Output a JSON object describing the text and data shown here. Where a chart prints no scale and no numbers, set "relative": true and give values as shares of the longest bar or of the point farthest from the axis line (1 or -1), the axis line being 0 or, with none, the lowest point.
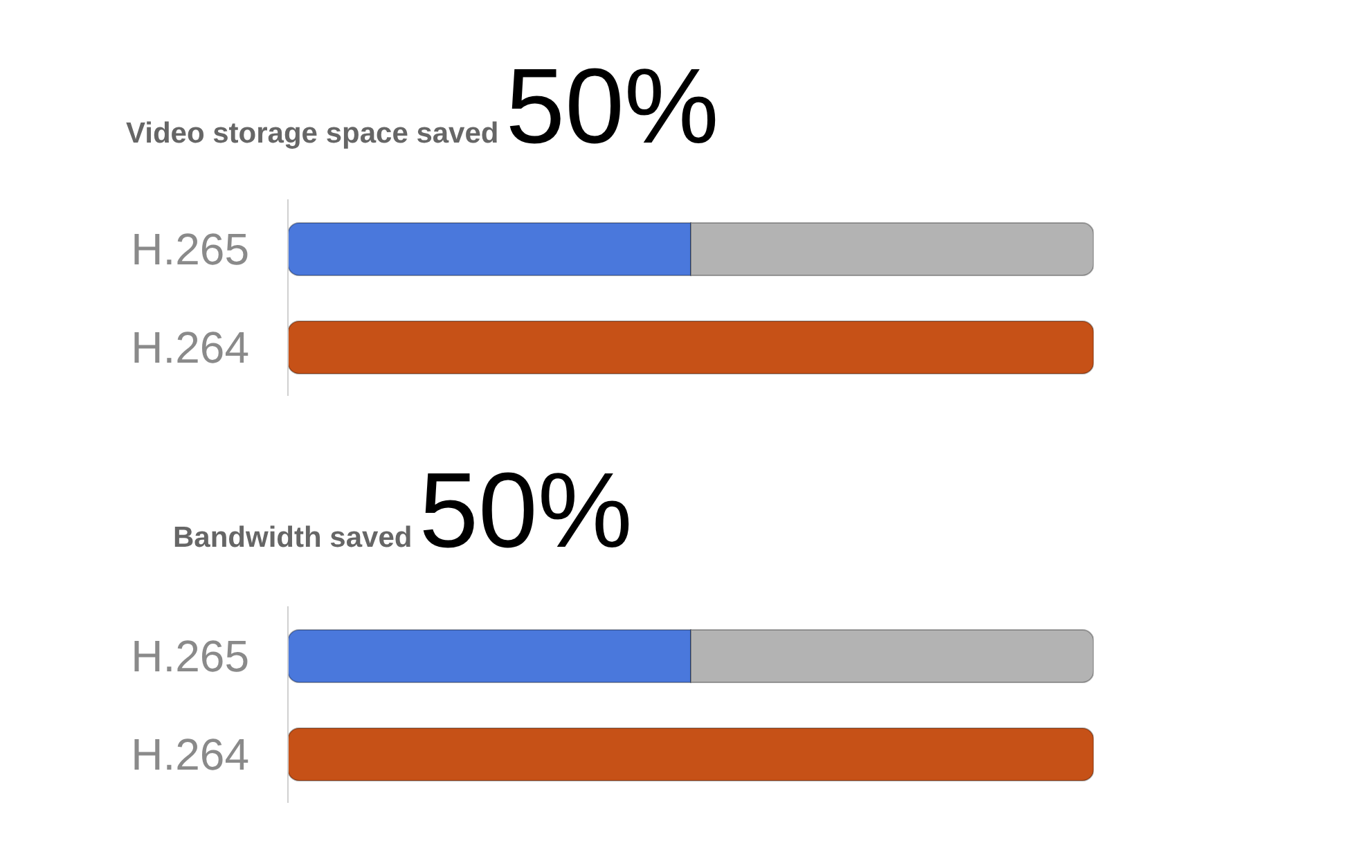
{
  "chart_data": [
    {
      "type": "bar",
      "title": "Video storage space saved",
      "annotations": [
        "50%"
      ],
      "orientation": "horizontal",
      "stacked": true,
      "relative": true,
      "categories": [
        "H.265",
        "H.264"
      ],
      "series": [
        {
          "color": "#4a78dc",
          "values": [
            0.5,
            null
          ]
        },
        {
          "color": "#c65117",
          "values": [
            null,
            1
          ]
        },
        {
          "color": "#b3b3b3",
          "values": [
            0.5,
            null
          ]
        }
      ]
    },
    {
      "type": "bar",
      "title": "Bandwidth saved",
      "annotations": [
        "50%"
      ],
      "orientation": "horizontal",
      "stacked": true,
      "relative": true,
      "categories": [
        "H.265",
        "H.264"
      ],
      "series": [
        {
          "color": "#4a78dc",
          "values": [
            0.5,
            null
          ]
        },
        {
          "color": "#c65117",
          "values": [
            null,
            1
          ]
        },
        {
          "color": "#b3b3b3",
          "values": [
            0.5,
            null
          ]
        }
      ]
    }
  ]
}
